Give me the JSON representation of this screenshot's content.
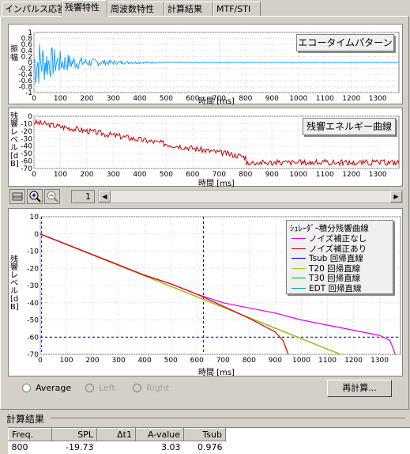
{
  "tabs": [
    "インパルス応答",
    "残響特性",
    "周波数特性",
    "計算結果",
    "MTF/STI"
  ],
  "active_tab": 1,
  "panel1": {
    "button_label": "エコータイムパターン",
    "ylabel": "振幅",
    "xlabel": "時間 [ms]",
    "y_ticks": [
      "1",
      "0.8",
      "0.6",
      "0.4",
      "0.2",
      "0",
      "-0.2",
      "-0.4",
      "-0.6",
      "-0.8",
      "-1"
    ],
    "x_ticks": [
      "0",
      "100",
      "200",
      "300",
      "400",
      "500",
      "600",
      "700",
      "800",
      "900",
      "1000",
      "1100",
      "1200",
      "1300"
    ],
    "trace_color": "#1aa0ff"
  },
  "panel2": {
    "button_label": "残響エネルギー曲線",
    "ylabel": "残響レベル [dB]",
    "xlabel": "時間 [ms]",
    "y_ticks": [
      "0",
      "-10",
      "-20",
      "-30",
      "-40",
      "-50",
      "-60",
      "-70"
    ],
    "x_ticks": [
      "0",
      "100",
      "200",
      "300",
      "400",
      "500",
      "600",
      "700",
      "800",
      "900",
      "1000",
      "1100",
      "1200",
      "1300"
    ],
    "trace_color": "#cc0000"
  },
  "toolbar": {
    "icons": [
      "grid-icon",
      "zoom-in-icon",
      "zoom-out-icon"
    ],
    "page": "1"
  },
  "panel3": {
    "ylabel": "残響レベル [dB]",
    "xlabel": "時間 [ms]",
    "y_ticks": [
      "10",
      "0",
      "-10",
      "-20",
      "-30",
      "-40",
      "-50",
      "-60",
      "-70"
    ],
    "x_ticks": [
      "0",
      "100",
      "200",
      "300",
      "400",
      "500",
      "600",
      "700",
      "800",
      "900",
      "1000",
      "1100",
      "1200",
      "1300"
    ],
    "legend_title": "ｼｭﾚｰﾀﾞｰ積分残響曲線",
    "legend": [
      {
        "label": "ノイズ補正なし",
        "color": "#e000e0"
      },
      {
        "label": "ノイズ補正あり",
        "color": "#e00000"
      },
      {
        "label": "Tsub 回帰直線",
        "color": "#0000c0"
      },
      {
        "label": "T20 回帰直線",
        "color": "#c0c000"
      },
      {
        "label": "T30 回帰直線",
        "color": "#00b000"
      },
      {
        "label": "EDT 回帰直線",
        "color": "#00a0c0"
      }
    ]
  },
  "chart_data": [
    {
      "type": "line",
      "xlabel": "時間 [ms]",
      "ylabel": "残響レベル [dB]",
      "xlim": [
        0,
        1380
      ],
      "ylim": [
        -70,
        10
      ],
      "series": [
        {
          "name": "ノイズ補正なし",
          "x": [
            0,
            100,
            200,
            300,
            400,
            500,
            600,
            700,
            800,
            900,
            1000,
            1100,
            1200,
            1300,
            1340,
            1360
          ],
          "y": [
            0,
            -6,
            -12,
            -18,
            -24,
            -29,
            -35,
            -40,
            -43,
            -46,
            -50,
            -53,
            -56,
            -59,
            -62,
            -70
          ]
        },
        {
          "name": "ノイズ補正あり",
          "x": [
            0,
            100,
            200,
            300,
            400,
            500,
            600,
            700,
            800,
            900,
            930,
            950
          ],
          "y": [
            0,
            -6,
            -12,
            -18,
            -24,
            -29,
            -35,
            -42,
            -49,
            -57,
            -62,
            -70
          ]
        },
        {
          "name": "Tsub 回帰直線",
          "x": [
            0,
            1150
          ],
          "y": [
            0,
            -70
          ]
        },
        {
          "name": "T20 回帰直線",
          "x": [
            0,
            1150
          ],
          "y": [
            0,
            -70
          ]
        },
        {
          "name": "T30 回帰直線",
          "x": [
            0,
            1150
          ],
          "y": [
            0,
            -70
          ]
        },
        {
          "name": "EDT 回帰直線",
          "x": [
            0,
            1150
          ],
          "y": [
            0,
            -70
          ]
        }
      ],
      "markers": {
        "vertical_lines": [
          5,
          625
        ],
        "horizontal_line": -60
      }
    }
  ],
  "controls": {
    "radios": [
      {
        "label": "Average",
        "disabled": false
      },
      {
        "label": "Left",
        "disabled": true
      },
      {
        "label": "Right",
        "disabled": true
      }
    ],
    "recalc_button": "再計算..."
  },
  "results": {
    "title": "計算結果",
    "columns": [
      "Freq.",
      "SPL",
      "Δt1",
      "A-value",
      "Tsub"
    ],
    "rows": [
      [
        "800",
        "-19.73",
        "",
        "3.03",
        "0.976"
      ]
    ]
  }
}
